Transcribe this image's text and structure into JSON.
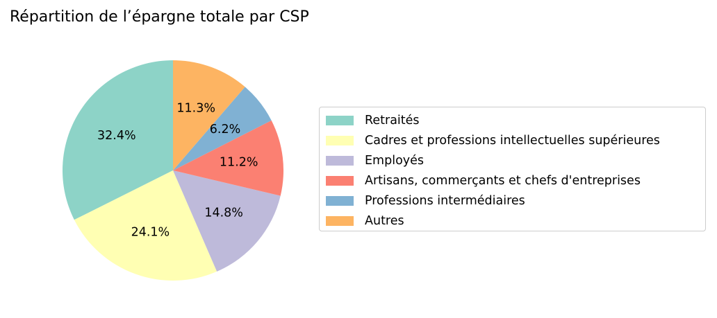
{
  "chart_data": {
    "type": "pie",
    "title": "Répartition de l’épargne totale par CSP",
    "categories": [
      "Retraités",
      "Cadres et professions intellectuelles supérieures",
      "Employés",
      "Artisans, commerçants et chefs d'entreprises",
      "Professions intermédiaires",
      "Autres"
    ],
    "values": [
      32.4,
      24.1,
      14.8,
      11.2,
      6.2,
      11.3
    ],
    "value_labels": [
      "32.4%",
      "24.1%",
      "14.8%",
      "11.2%",
      "6.2%",
      "11.3%"
    ],
    "colors": [
      "#8dd3c7",
      "#ffffb3",
      "#bebada",
      "#fb8072",
      "#80b1d3",
      "#fdb462"
    ],
    "start_angle": 90,
    "direction": "counterclockwise",
    "legend_position": "right"
  }
}
